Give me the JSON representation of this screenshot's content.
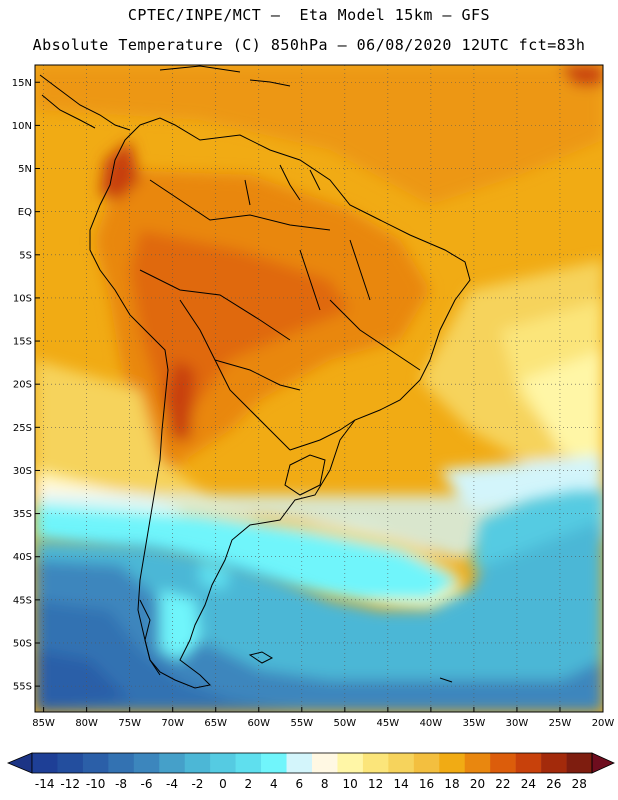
{
  "title": {
    "line1": "CPTEC/INPE/MCT —  Eta Model 15km — GFS",
    "line2": "Absolute Temperature (C) 850hPa — 06/08/2020 12UTC fct=83h"
  },
  "lat_labels": [
    "15N",
    "10N",
    "5N",
    "EQ",
    "5S",
    "10S",
    "15S",
    "20S",
    "25S",
    "30S",
    "35S",
    "40S",
    "45S",
    "50S",
    "55S"
  ],
  "lon_labels": [
    "85W",
    "80W",
    "75W",
    "70W",
    "65W",
    "60W",
    "55W",
    "50W",
    "45W",
    "40W",
    "35W",
    "30W",
    "25W",
    "20W"
  ],
  "colorbar": {
    "labels": [
      "-14",
      "-12",
      "-10",
      "-8",
      "-6",
      "-4",
      "-2",
      "0",
      "2",
      "4",
      "6",
      "8",
      "10",
      "12",
      "14",
      "16",
      "18",
      "20",
      "22",
      "24",
      "26",
      "28"
    ],
    "colors": [
      "#1e3f96",
      "#234e9e",
      "#2b5fa8",
      "#3372b2",
      "#3c86bd",
      "#45a0c9",
      "#4cb7d6",
      "#55cbe2",
      "#5fdfee",
      "#70f5fb",
      "#d3f5fb",
      "#fff8e3",
      "#fff6a6",
      "#fbe57a",
      "#f6d35c",
      "#f3bf3f",
      "#f1ab14",
      "#e9870f",
      "#dc5d0b",
      "#c8410b",
      "#a32a0b",
      "#7e1d0f"
    ],
    "low_arrow_color": "#1c3485",
    "high_arrow_color": "#6e0d1e"
  },
  "map": {
    "lat_max": 17,
    "lat_min": -58,
    "lon_min": -86,
    "lon_max": -20
  }
}
